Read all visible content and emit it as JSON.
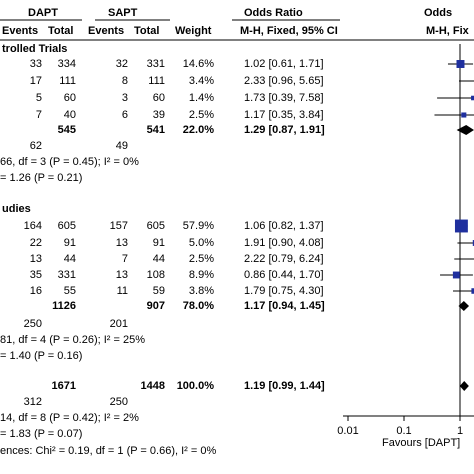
{
  "header": {
    "group1": "DAPT",
    "group2": "SAPT",
    "events1": "Events",
    "total1": "Total",
    "events2": "Events",
    "total2": "Total",
    "weight": "Weight",
    "or_title": "Odds Ratio",
    "or_method": "M-H, Fixed, 95% CI",
    "or_title_plot": "Odds",
    "or_method_plot": "M-H, Fix"
  },
  "sections": [
    {
      "title": "trolled Trials",
      "rows": [
        {
          "e1": "33",
          "t1": "334",
          "e2": "32",
          "t2": "331",
          "w": "14.6%",
          "ci": "1.02 [0.61, 1.71]"
        },
        {
          "e1": "17",
          "t1": "111",
          "e2": "8",
          "t2": "111",
          "w": "3.4%",
          "ci": "2.33 [0.96, 5.65]"
        },
        {
          "e1": "5",
          "t1": "60",
          "e2": "3",
          "t2": "60",
          "w": "1.4%",
          "ci": "1.73 [0.39, 7.58]"
        },
        {
          "e1": "7",
          "t1": "40",
          "e2": "6",
          "t2": "39",
          "w": "2.5%",
          "ci": "1.17 [0.35, 3.84]"
        }
      ],
      "subtotal": {
        "t1": "545",
        "t2": "541",
        "w": "22.0%",
        "ci": "1.29 [0.87, 1.91]"
      },
      "events_total": {
        "e1": "62",
        "e2": "49"
      },
      "heterogeneity": "66, df = 3 (P = 0.45); I² = 0%",
      "overall_effect": "= 1.26 (P = 0.21)"
    },
    {
      "title": "udies",
      "rows": [
        {
          "e1": "164",
          "t1": "605",
          "e2": "157",
          "t2": "605",
          "w": "57.9%",
          "ci": "1.06 [0.82, 1.37]"
        },
        {
          "e1": "22",
          "t1": "91",
          "e2": "13",
          "t2": "91",
          "w": "5.0%",
          "ci": "1.91 [0.90, 4.08]"
        },
        {
          "e1": "13",
          "t1": "44",
          "e2": "7",
          "t2": "44",
          "w": "2.5%",
          "ci": "2.22 [0.79, 6.24]"
        },
        {
          "e1": "35",
          "t1": "331",
          "e2": "13",
          "t2": "108",
          "w": "8.9%",
          "ci": "0.86 [0.44, 1.70]"
        },
        {
          "e1": "16",
          "t1": "55",
          "e2": "11",
          "t2": "59",
          "w": "3.8%",
          "ci": "1.79 [0.75, 4.30]"
        }
      ],
      "subtotal": {
        "t1": "1126",
        "t2": "907",
        "w": "78.0%",
        "ci": "1.17 [0.94, 1.45]"
      },
      "events_total": {
        "e1": "250",
        "e2": "201"
      },
      "heterogeneity": "81, df = 4 (P = 0.26); I² = 25%",
      "overall_effect": "= 1.40 (P = 0.16)"
    }
  ],
  "total": {
    "t1": "1671",
    "t2": "1448",
    "w": "100.0%",
    "ci": "1.19 [0.99, 1.44]",
    "events_total": {
      "e1": "312",
      "e2": "250"
    },
    "heterogeneity": "14, df = 8 (P = 0.42); I² = 2%",
    "overall_effect": "= 1.83 (P = 0.07)",
    "subgroup_diff": "ences: Chi² = 0.19, df = 1 (P = 0.66), I² = 0%"
  },
  "chart_data": {
    "type": "forest",
    "scale": "log",
    "axis_ticks": [
      {
        "value": 0.01,
        "label": "0.01"
      },
      {
        "value": 0.1,
        "label": "0.1"
      },
      {
        "value": 1,
        "label": "1"
      }
    ],
    "favours_left": "Favours [DAPT]",
    "studies": [
      {
        "or": 1.02,
        "lo": 0.61,
        "hi": 1.71,
        "weight": 14.6
      },
      {
        "or": 2.33,
        "lo": 0.96,
        "hi": 5.65,
        "weight": 3.4
      },
      {
        "or": 1.73,
        "lo": 0.39,
        "hi": 7.58,
        "weight": 1.4
      },
      {
        "or": 1.17,
        "lo": 0.35,
        "hi": 3.84,
        "weight": 2.5
      },
      {
        "or": 1.06,
        "lo": 0.82,
        "hi": 1.37,
        "weight": 57.9
      },
      {
        "or": 1.91,
        "lo": 0.9,
        "hi": 4.08,
        "weight": 5.0
      },
      {
        "or": 2.22,
        "lo": 0.79,
        "hi": 6.24,
        "weight": 2.5
      },
      {
        "or": 0.86,
        "lo": 0.44,
        "hi": 1.7,
        "weight": 8.9
      },
      {
        "or": 1.79,
        "lo": 0.75,
        "hi": 4.3,
        "weight": 3.8
      }
    ],
    "subtotals": [
      {
        "or": 1.29,
        "lo": 0.87,
        "hi": 1.91
      },
      {
        "or": 1.17,
        "lo": 0.94,
        "hi": 1.45
      }
    ],
    "overall": {
      "or": 1.19,
      "lo": 0.99,
      "hi": 1.44
    },
    "colors": {
      "square": "#1f2f9e",
      "diamond": "#000000"
    }
  }
}
